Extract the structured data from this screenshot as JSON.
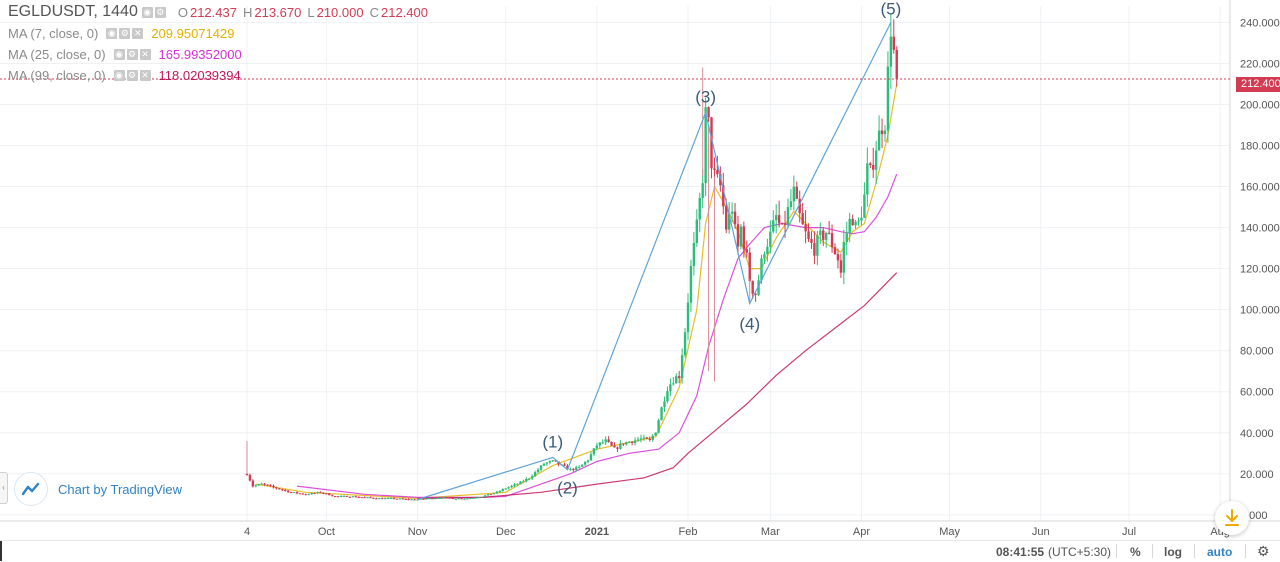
{
  "header": {
    "symbol": "EGLDUSDT, 1440",
    "ohlc": [
      {
        "key": "O",
        "value": "212.437"
      },
      {
        "key": "H",
        "value": "213.670"
      },
      {
        "key": "L",
        "value": "210.000"
      },
      {
        "key": "C",
        "value": "212.400"
      }
    ],
    "indicators": [
      {
        "label": "MA (7, close, 0)",
        "value": "209.95071429",
        "color": "#e3b200"
      },
      {
        "label": "MA (25, close, 0)",
        "value": "165.99352000",
        "color": "#d631d6"
      },
      {
        "label": "MA (99, close, 0)",
        "value": "118.02039394",
        "color": "#c2185b"
      }
    ]
  },
  "branding": {
    "text": "Chart by TradingView"
  },
  "bottom_bar": {
    "time": "08:41:55",
    "timezone": "(UTC+5:30)",
    "percent": "%",
    "log": "log",
    "auto": "auto"
  },
  "colors": {
    "up": "#2dbd7a",
    "down": "#d23b52",
    "wave": "#5fa4d6",
    "grid": "#eef1f4"
  },
  "icons": {
    "logo": "tradingview-cloud-icon",
    "download": "download-icon",
    "settings": "gear-icon"
  },
  "chart_data": {
    "type": "candlestick",
    "title": "EGLDUSDT, 1440",
    "last_price": "212.400",
    "ylim": [
      -3,
      248
    ],
    "y_ticks": [
      0,
      20,
      40,
      60,
      80,
      100,
      120,
      140,
      160,
      180,
      200,
      220,
      240
    ],
    "y_tick_labels": [
      "0.000",
      "20.000",
      "40.000",
      "60.000",
      "80.000",
      "100.000",
      "120.000",
      "140.000",
      "160.000",
      "180.000",
      "200.000",
      "220.000",
      "240.000"
    ],
    "x_ticks": [
      {
        "label": "4",
        "day": 0
      },
      {
        "label": "Oct",
        "day": 27
      },
      {
        "label": "Nov",
        "day": 58
      },
      {
        "label": "Dec",
        "day": 88
      },
      {
        "label": "2021",
        "day": 119
      },
      {
        "label": "Feb",
        "day": 150
      },
      {
        "label": "Mar",
        "day": 178
      },
      {
        "label": "Apr",
        "day": 209
      },
      {
        "label": "May",
        "day": 239
      },
      {
        "label": "Jun",
        "day": 270
      },
      {
        "label": "Jul",
        "day": 300
      },
      {
        "label": "Aug",
        "day": 331
      }
    ],
    "price_path": [
      [
        0,
        20
      ],
      [
        2,
        14
      ],
      [
        5,
        15
      ],
      [
        10,
        13
      ],
      [
        15,
        11
      ],
      [
        20,
        10
      ],
      [
        25,
        11
      ],
      [
        30,
        9
      ],
      [
        35,
        9
      ],
      [
        40,
        8.5
      ],
      [
        45,
        8
      ],
      [
        50,
        8
      ],
      [
        55,
        7.5
      ],
      [
        58,
        7.5
      ],
      [
        62,
        8
      ],
      [
        66,
        8.5
      ],
      [
        70,
        8
      ],
      [
        75,
        8
      ],
      [
        80,
        9
      ],
      [
        85,
        11
      ],
      [
        88,
        13
      ],
      [
        92,
        15
      ],
      [
        96,
        18
      ],
      [
        99,
        22
      ],
      [
        101,
        25
      ],
      [
        104,
        26
      ],
      [
        107,
        24
      ],
      [
        110,
        22
      ],
      [
        113,
        23
      ],
      [
        116,
        27
      ],
      [
        119,
        34
      ],
      [
        122,
        36
      ],
      [
        125,
        32
      ],
      [
        128,
        35
      ],
      [
        131,
        36
      ],
      [
        134,
        37
      ],
      [
        137,
        36
      ],
      [
        139,
        41
      ],
      [
        141,
        52
      ],
      [
        143,
        62
      ],
      [
        145,
        66
      ],
      [
        147,
        68
      ],
      [
        149,
        90
      ],
      [
        151,
        120
      ],
      [
        153,
        140
      ],
      [
        155,
        165
      ],
      [
        156,
        195
      ],
      [
        157,
        190
      ],
      [
        158,
        172
      ],
      [
        159,
        165
      ],
      [
        161,
        160
      ],
      [
        163,
        140
      ],
      [
        165,
        150
      ],
      [
        166,
        138
      ],
      [
        167,
        130
      ],
      [
        168,
        140
      ],
      [
        170,
        125
      ],
      [
        171,
        115
      ],
      [
        172,
        110
      ],
      [
        173,
        108
      ],
      [
        174,
        115
      ],
      [
        176,
        130
      ],
      [
        178,
        136
      ],
      [
        180,
        145
      ],
      [
        182,
        138
      ],
      [
        184,
        148
      ],
      [
        186,
        157
      ],
      [
        187,
        150
      ],
      [
        188,
        145
      ],
      [
        189,
        140
      ],
      [
        191,
        133
      ],
      [
        193,
        130
      ],
      [
        195,
        135
      ],
      [
        197,
        138
      ],
      [
        199,
        132
      ],
      [
        201,
        125
      ],
      [
        202,
        118
      ],
      [
        203,
        132
      ],
      [
        205,
        143
      ],
      [
        206,
        145
      ],
      [
        207,
        140
      ],
      [
        208,
        142
      ],
      [
        209,
        148
      ],
      [
        210,
        155
      ],
      [
        211,
        168
      ],
      [
        212,
        166
      ],
      [
        214,
        180
      ],
      [
        216,
        190
      ],
      [
        217,
        192
      ],
      [
        219,
        238
      ],
      [
        220,
        225
      ],
      [
        221,
        212.4
      ]
    ],
    "spike_wicks": [
      {
        "day": 0,
        "high": 36
      },
      {
        "day": 155,
        "high": 218
      },
      {
        "day": 157,
        "low": 70
      },
      {
        "day": 159,
        "low": 65
      },
      {
        "day": 171,
        "low": 104
      }
    ],
    "series": [
      {
        "name": "MA (7, close, 0)",
        "color": "#e3b200",
        "points": [
          [
            3,
            15
          ],
          [
            20,
            11
          ],
          [
            58,
            8
          ],
          [
            88,
            11
          ],
          [
            104,
            24
          ],
          [
            119,
            32
          ],
          [
            139,
            38
          ],
          [
            147,
            62
          ],
          [
            153,
            100
          ],
          [
            156,
            142
          ],
          [
            159,
            160
          ],
          [
            163,
            150
          ],
          [
            167,
            138
          ],
          [
            171,
            120
          ],
          [
            175,
            120
          ],
          [
            180,
            135
          ],
          [
            186,
            148
          ],
          [
            190,
            142
          ],
          [
            196,
            133
          ],
          [
            202,
            128
          ],
          [
            206,
            138
          ],
          [
            210,
            142
          ],
          [
            214,
            162
          ],
          [
            218,
            185
          ],
          [
            221,
            210
          ]
        ]
      },
      {
        "name": "MA (25, close, 0)",
        "color": "#d631d6",
        "points": [
          [
            17,
            14
          ],
          [
            40,
            10
          ],
          [
            58,
            8.5
          ],
          [
            80,
            8.5
          ],
          [
            88,
            9
          ],
          [
            100,
            15
          ],
          [
            110,
            20
          ],
          [
            119,
            26
          ],
          [
            130,
            30
          ],
          [
            140,
            32
          ],
          [
            147,
            40
          ],
          [
            153,
            58
          ],
          [
            157,
            82
          ],
          [
            162,
            105
          ],
          [
            167,
            125
          ],
          [
            171,
            132
          ],
          [
            176,
            140
          ],
          [
            182,
            142
          ],
          [
            190,
            140
          ],
          [
            196,
            140
          ],
          [
            202,
            138
          ],
          [
            206,
            137
          ],
          [
            210,
            138
          ],
          [
            214,
            145
          ],
          [
            218,
            155
          ],
          [
            221,
            166
          ]
        ]
      },
      {
        "name": "MA (99, close, 0)",
        "color": "#c2185b",
        "points": [
          [
            58,
            8
          ],
          [
            80,
            8.5
          ],
          [
            100,
            11
          ],
          [
            119,
            15
          ],
          [
            135,
            18
          ],
          [
            145,
            23
          ],
          [
            150,
            30
          ],
          [
            160,
            42
          ],
          [
            170,
            54
          ],
          [
            180,
            68
          ],
          [
            190,
            80
          ],
          [
            200,
            91
          ],
          [
            210,
            102
          ],
          [
            221,
            118
          ]
        ]
      }
    ],
    "wave_labels": [
      {
        "label": "(1)",
        "day": 104,
        "value": 28
      },
      {
        "label": "(2)",
        "day": 109,
        "value": 22
      },
      {
        "label": "(3)",
        "day": 156,
        "value": 196
      },
      {
        "label": "(4)",
        "day": 171,
        "value": 103
      },
      {
        "label": "(5)",
        "day": 219,
        "value": 240
      }
    ],
    "wave_path": [
      [
        58,
        7.5
      ],
      [
        104,
        28
      ],
      [
        109,
        22
      ],
      [
        156,
        196
      ],
      [
        171,
        103
      ],
      [
        219,
        240
      ]
    ]
  }
}
